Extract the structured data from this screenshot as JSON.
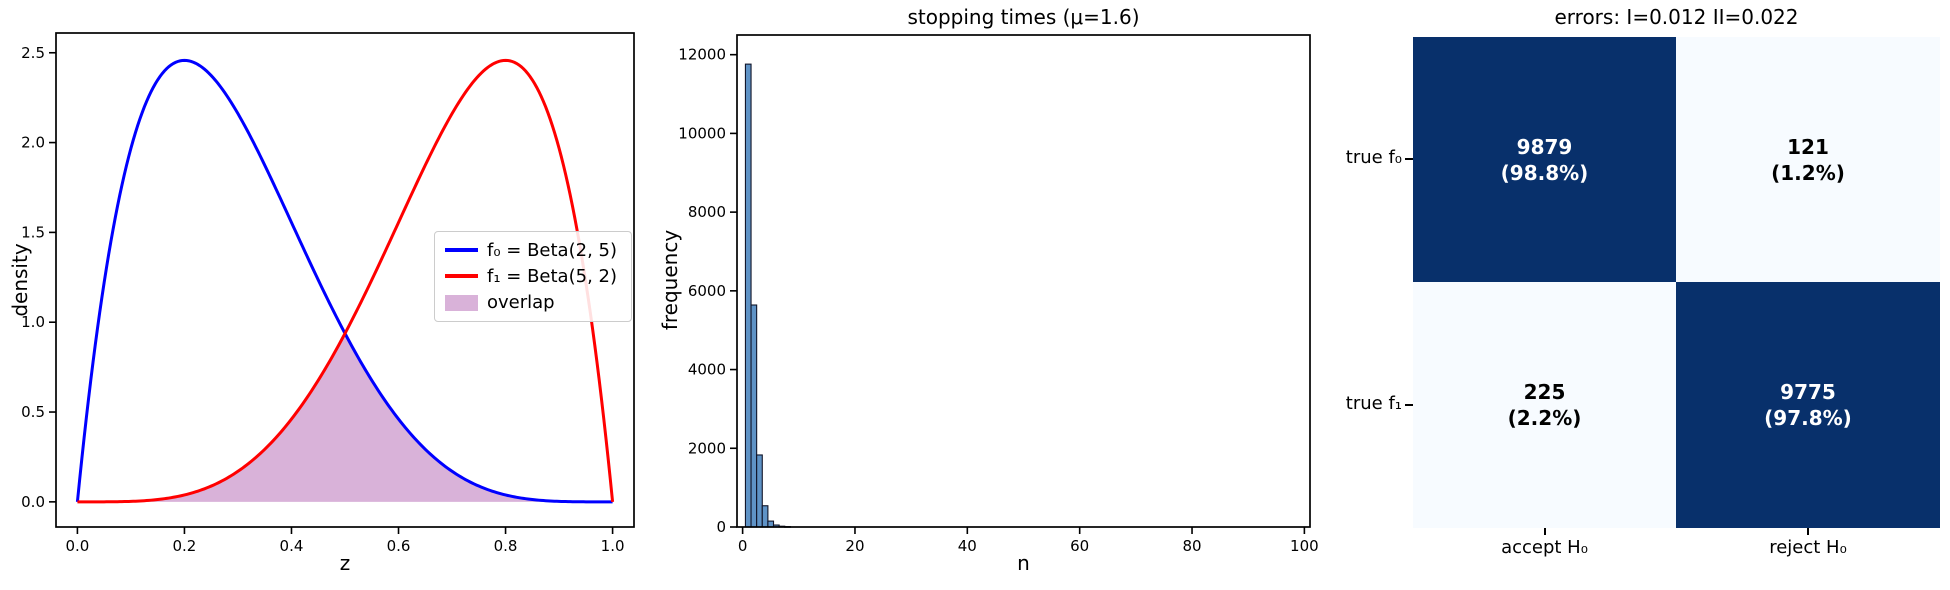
{
  "figure": {
    "background": "#ffffff"
  },
  "panels": {
    "beta": {
      "xlabel": "z",
      "ylabel": "density",
      "xticks": {
        "values": [
          0,
          0.2,
          0.4,
          0.6,
          0.8,
          1.0
        ],
        "labels": [
          "0.0",
          "0.2",
          "0.4",
          "0.6",
          "0.8",
          "1.0"
        ]
      },
      "yticks": {
        "values": [
          0,
          0.5,
          1.0,
          1.5,
          2.0,
          2.5
        ],
        "labels": [
          "0.0",
          "0.5",
          "1.0",
          "1.5",
          "2.0",
          "2.5"
        ]
      },
      "legend": [
        {
          "type": "line",
          "label": "f₀ = Beta(2, 5)",
          "color": "#0000ff"
        },
        {
          "type": "line",
          "label": "f₁ = Beta(5, 2)",
          "color": "#ff0000"
        },
        {
          "type": "patch",
          "label": "overlap",
          "color": "rgba(128,0,128,0.3)"
        }
      ]
    },
    "hist": {
      "title": "stopping times (μ=1.6)",
      "xlabel": "n",
      "ylabel": "frequency",
      "xticks": {
        "values": [
          0,
          20,
          40,
          60,
          80,
          100
        ],
        "labels": [
          "0",
          "20",
          "40",
          "60",
          "80",
          "100"
        ]
      },
      "yticks": {
        "values": [
          0,
          2000,
          4000,
          6000,
          8000,
          10000,
          12000
        ],
        "labels": [
          "0",
          "2000",
          "4000",
          "6000",
          "8000",
          "10000",
          "12000"
        ]
      }
    },
    "matrix": {
      "title": "errors: I=0.012 II=0.022",
      "row_labels": [
        "true f₀",
        "true f₁"
      ],
      "col_labels": [
        "accept H₀",
        "reject H₀"
      ],
      "cells": [
        {
          "count": "9879",
          "pct": "(98.8%)",
          "bg": "#08306b",
          "fg": "#ffffff"
        },
        {
          "count": "121",
          "pct": "(1.2%)",
          "bg": "#f7fbff",
          "fg": "#000000"
        },
        {
          "count": "225",
          "pct": "(2.2%)",
          "bg": "#f7fbff",
          "fg": "#000000"
        },
        {
          "count": "9775",
          "pct": "(97.8%)",
          "bg": "#08306b",
          "fg": "#ffffff"
        }
      ]
    }
  },
  "chart_data": [
    {
      "type": "line",
      "title": "",
      "xlabel": "z",
      "ylabel": "density",
      "xlim": [
        -0.04,
        1.04
      ],
      "ylim": [
        -0.14,
        2.61
      ],
      "grid": false,
      "legend_position": "center-right",
      "series": [
        {
          "name": "f₀ = Beta(2, 5)",
          "distribution": "Beta",
          "params": [
            2,
            5
          ],
          "color": "#0000ff",
          "linewidth": 3,
          "peak": {
            "x": 0.2,
            "y": 2.46
          }
        },
        {
          "name": "f₁ = Beta(5, 2)",
          "distribution": "Beta",
          "params": [
            5,
            2
          ],
          "color": "#ff0000",
          "linewidth": 3,
          "peak": {
            "x": 0.8,
            "y": 2.46
          }
        }
      ],
      "overlap": {
        "label": "overlap",
        "rule": "min(f0,f1)",
        "fill": "rgba(128,0,128,0.3)",
        "crossing": {
          "x": 0.5,
          "y": 0.94
        }
      }
    },
    {
      "type": "bar",
      "title": "stopping times (μ=1.6)",
      "xlabel": "n",
      "ylabel": "frequency",
      "xlim": [
        -1,
        101
      ],
      "ylim": [
        0,
        12500
      ],
      "grid": false,
      "bin_centers": [
        1,
        2,
        3,
        4,
        5,
        6,
        7,
        8
      ],
      "bin_width": 1,
      "counts": [
        11760,
        5640,
        1830,
        540,
        150,
        50,
        20,
        10
      ],
      "bar_color": "#5f93c6",
      "edge_color": "#101428"
    },
    {
      "type": "heatmap",
      "title": "errors: I=0.012 II=0.022",
      "rows": [
        "true f₀",
        "true f₁"
      ],
      "cols": [
        "accept H₀",
        "reject H₀"
      ],
      "values": [
        [
          9879,
          121
        ],
        [
          225,
          9775
        ]
      ],
      "percent": [
        [
          98.8,
          1.2
        ],
        [
          2.2,
          97.8
        ]
      ],
      "colormap": "Blues",
      "color_max": "#08306b",
      "color_min": "#f7fbff",
      "type_I_error": 0.012,
      "type_II_error": 0.022
    }
  ]
}
